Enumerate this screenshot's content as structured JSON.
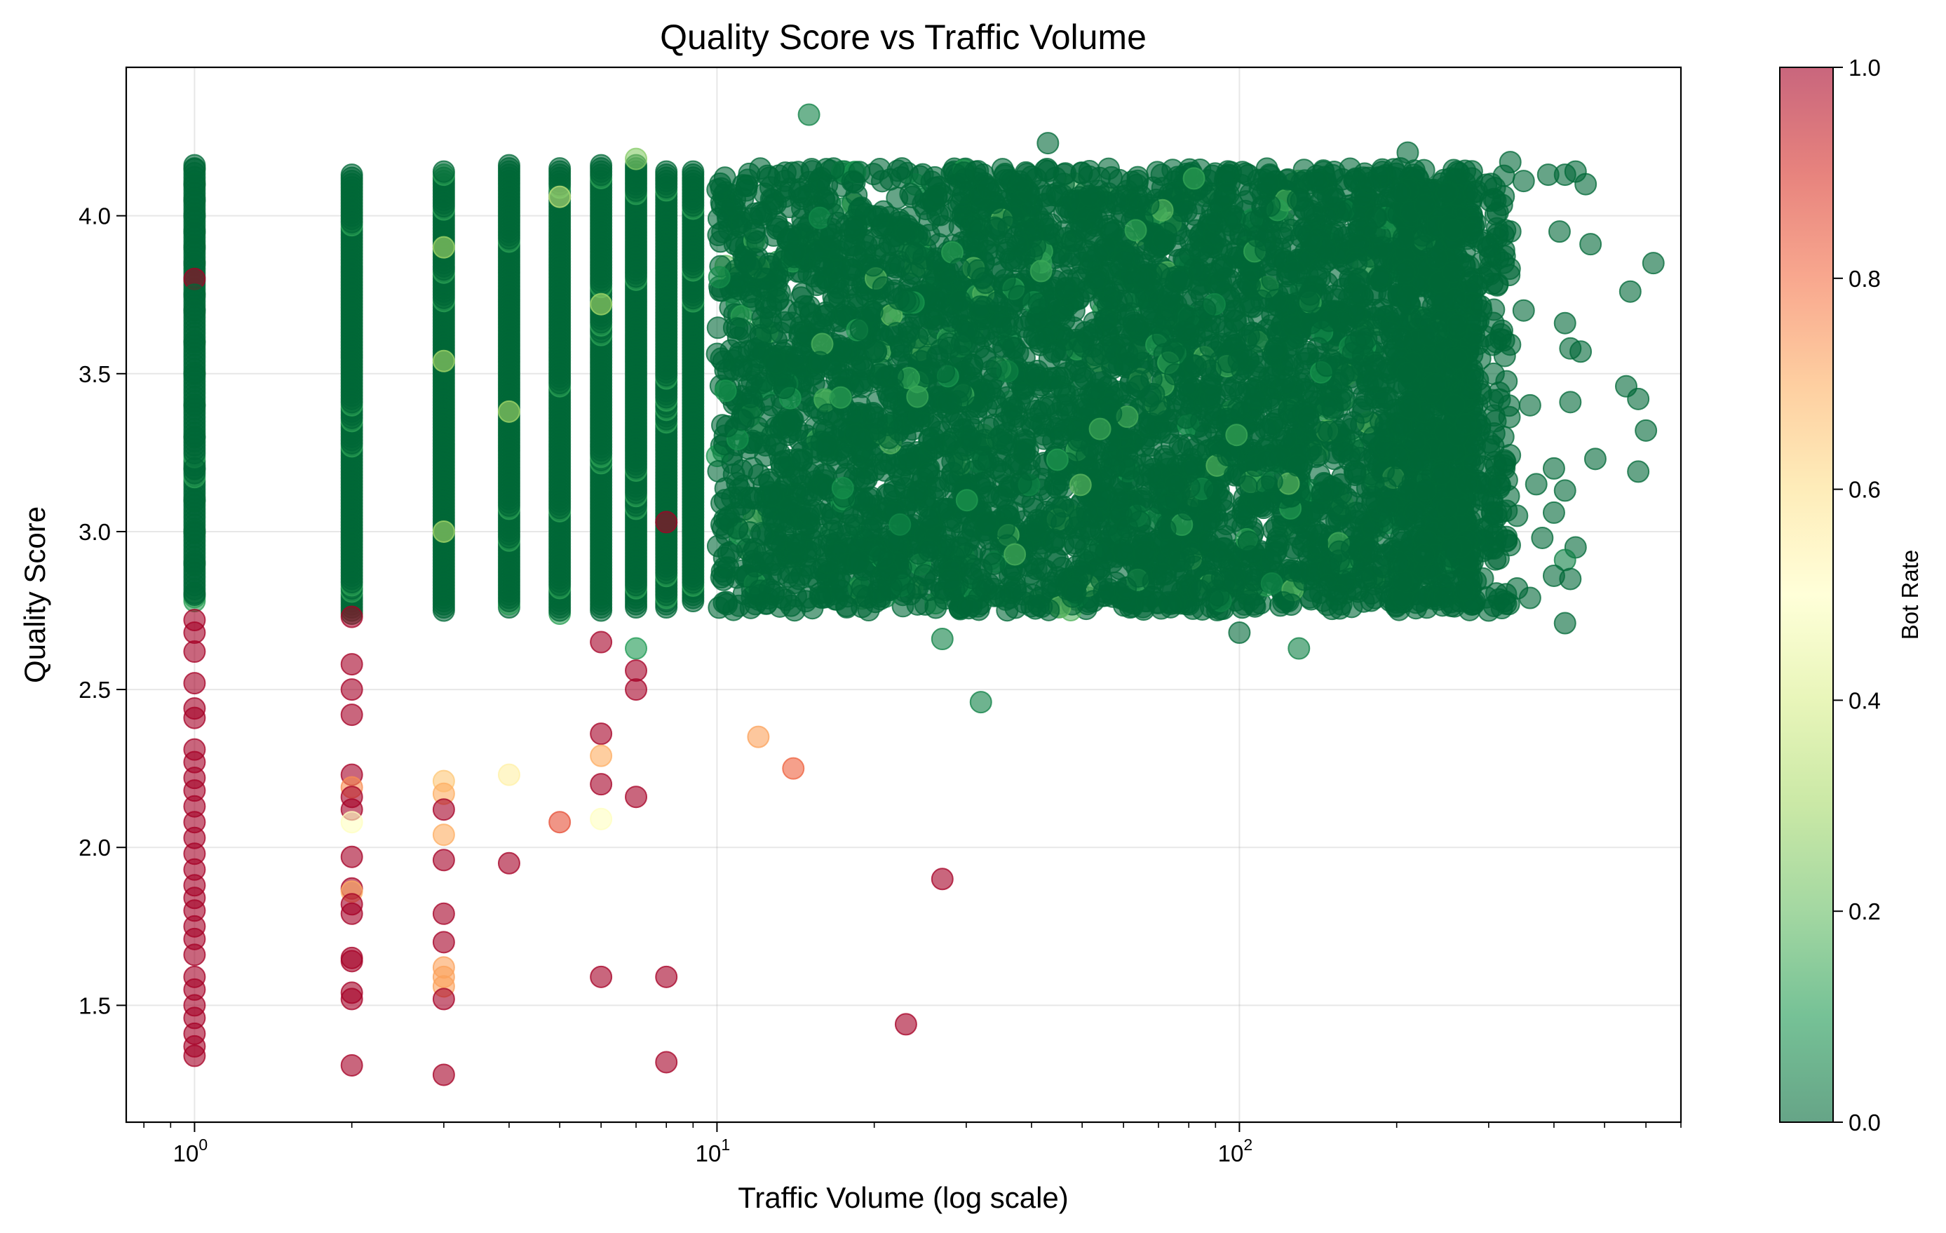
{
  "chart_data": {
    "type": "scatter",
    "title": "Quality Score vs Traffic Volume",
    "xlabel": "Traffic Volume (log scale)",
    "ylabel": "Quality Score",
    "x_scale": "log",
    "xlim": [
      0.74,
      700
    ],
    "ylim": [
      1.13,
      4.47
    ],
    "x_ticks": [
      {
        "value": 1,
        "base": "10",
        "exp": "0"
      },
      {
        "value": 10,
        "base": "10",
        "exp": "1"
      },
      {
        "value": 100,
        "base": "10",
        "exp": "2"
      }
    ],
    "y_ticks": [
      1.5,
      2.0,
      2.5,
      3.0,
      3.5,
      4.0
    ],
    "y_tick_labels": [
      "1.5",
      "2.0",
      "2.5",
      "3.0",
      "3.5",
      "4.0"
    ],
    "grid": true,
    "marker_alpha": 0.6,
    "colorbar": {
      "label": "Bot Rate",
      "range": [
        0.0,
        1.0
      ],
      "ticks": [
        0.0,
        0.2,
        0.4,
        0.6,
        0.8,
        1.0
      ],
      "tick_labels": [
        "0.0",
        "0.2",
        "0.4",
        "0.6",
        "0.8",
        "1.0"
      ],
      "colormap": [
        "#006837",
        "#1a9850",
        "#66bd63",
        "#a6d96a",
        "#d9ef8b",
        "#ffffbf",
        "#fee08b",
        "#fdae61",
        "#f46d43",
        "#d73027",
        "#a50026"
      ]
    },
    "bulk_regions": [
      {
        "x_range": [
          10,
          280
        ],
        "y_range": [
          2.75,
          4.15
        ],
        "bot_rate": 0.0,
        "description_density": "dense"
      }
    ],
    "points": [
      {
        "x": 1,
        "y": 4.15,
        "c": 0.0
      },
      {
        "x": 1,
        "y": 4.1,
        "c": 0.0
      },
      {
        "x": 1,
        "y": 4.05,
        "c": 0.0
      },
      {
        "x": 1,
        "y": 4.0,
        "c": 0.0
      },
      {
        "x": 1,
        "y": 3.95,
        "c": 0.0
      },
      {
        "x": 1,
        "y": 3.9,
        "c": 0.0
      },
      {
        "x": 1,
        "y": 3.85,
        "c": 0.0
      },
      {
        "x": 1,
        "y": 3.8,
        "c": 1.0
      },
      {
        "x": 1,
        "y": 3.75,
        "c": 0.0
      },
      {
        "x": 1,
        "y": 3.7,
        "c": 0.0
      },
      {
        "x": 1,
        "y": 3.6,
        "c": 0.0
      },
      {
        "x": 1,
        "y": 3.5,
        "c": 0.0
      },
      {
        "x": 1,
        "y": 3.4,
        "c": 0.0
      },
      {
        "x": 1,
        "y": 3.3,
        "c": 0.0
      },
      {
        "x": 1,
        "y": 3.2,
        "c": 0.0
      },
      {
        "x": 1,
        "y": 3.1,
        "c": 0.0
      },
      {
        "x": 1,
        "y": 3.0,
        "c": 0.0
      },
      {
        "x": 1,
        "y": 2.9,
        "c": 0.0
      },
      {
        "x": 1,
        "y": 2.8,
        "c": 0.0
      },
      {
        "x": 1,
        "y": 2.72,
        "c": 1.0
      },
      {
        "x": 1,
        "y": 2.68,
        "c": 1.0
      },
      {
        "x": 1,
        "y": 2.62,
        "c": 1.0
      },
      {
        "x": 1,
        "y": 2.52,
        "c": 1.0
      },
      {
        "x": 1,
        "y": 2.44,
        "c": 1.0
      },
      {
        "x": 1,
        "y": 2.41,
        "c": 1.0
      },
      {
        "x": 1,
        "y": 2.31,
        "c": 1.0
      },
      {
        "x": 1,
        "y": 2.27,
        "c": 1.0
      },
      {
        "x": 1,
        "y": 2.22,
        "c": 1.0
      },
      {
        "x": 1,
        "y": 2.18,
        "c": 1.0
      },
      {
        "x": 1,
        "y": 2.13,
        "c": 1.0
      },
      {
        "x": 1,
        "y": 2.08,
        "c": 1.0
      },
      {
        "x": 1,
        "y": 2.03,
        "c": 1.0
      },
      {
        "x": 1,
        "y": 1.98,
        "c": 1.0
      },
      {
        "x": 1,
        "y": 1.93,
        "c": 1.0
      },
      {
        "x": 1,
        "y": 1.88,
        "c": 1.0
      },
      {
        "x": 1,
        "y": 1.84,
        "c": 1.0
      },
      {
        "x": 1,
        "y": 1.8,
        "c": 1.0
      },
      {
        "x": 1,
        "y": 1.75,
        "c": 1.0
      },
      {
        "x": 1,
        "y": 1.71,
        "c": 1.0
      },
      {
        "x": 1,
        "y": 1.66,
        "c": 1.0
      },
      {
        "x": 1,
        "y": 1.59,
        "c": 1.0
      },
      {
        "x": 1,
        "y": 1.55,
        "c": 1.0
      },
      {
        "x": 1,
        "y": 1.5,
        "c": 1.0
      },
      {
        "x": 1,
        "y": 1.46,
        "c": 1.0
      },
      {
        "x": 1,
        "y": 1.41,
        "c": 1.0
      },
      {
        "x": 1,
        "y": 1.37,
        "c": 1.0
      },
      {
        "x": 1,
        "y": 1.34,
        "c": 1.0
      },
      {
        "x": 2,
        "y": 2.73,
        "c": 1.0
      },
      {
        "x": 2,
        "y": 2.58,
        "c": 1.0
      },
      {
        "x": 2,
        "y": 2.5,
        "c": 1.0
      },
      {
        "x": 2,
        "y": 2.42,
        "c": 1.0
      },
      {
        "x": 2,
        "y": 2.23,
        "c": 1.0
      },
      {
        "x": 2,
        "y": 2.19,
        "c": 0.75
      },
      {
        "x": 2,
        "y": 2.16,
        "c": 1.0
      },
      {
        "x": 2,
        "y": 2.12,
        "c": 1.0
      },
      {
        "x": 2,
        "y": 2.08,
        "c": 0.5
      },
      {
        "x": 2,
        "y": 1.97,
        "c": 1.0
      },
      {
        "x": 2,
        "y": 1.87,
        "c": 1.0
      },
      {
        "x": 2,
        "y": 1.86,
        "c": 0.7
      },
      {
        "x": 2,
        "y": 1.82,
        "c": 1.0
      },
      {
        "x": 2,
        "y": 1.79,
        "c": 1.0
      },
      {
        "x": 2,
        "y": 1.65,
        "c": 1.0
      },
      {
        "x": 2,
        "y": 1.64,
        "c": 1.0
      },
      {
        "x": 2,
        "y": 1.54,
        "c": 1.0
      },
      {
        "x": 2,
        "y": 1.52,
        "c": 1.0
      },
      {
        "x": 2,
        "y": 1.31,
        "c": 1.0
      },
      {
        "x": 3,
        "y": 2.21,
        "c": 0.65
      },
      {
        "x": 3,
        "y": 2.17,
        "c": 0.7
      },
      {
        "x": 3,
        "y": 2.12,
        "c": 1.0
      },
      {
        "x": 3,
        "y": 2.04,
        "c": 0.7
      },
      {
        "x": 3,
        "y": 1.96,
        "c": 1.0
      },
      {
        "x": 3,
        "y": 1.79,
        "c": 1.0
      },
      {
        "x": 3,
        "y": 1.7,
        "c": 1.0
      },
      {
        "x": 3,
        "y": 1.62,
        "c": 0.72
      },
      {
        "x": 3,
        "y": 1.59,
        "c": 0.72
      },
      {
        "x": 3,
        "y": 1.56,
        "c": 0.72
      },
      {
        "x": 3,
        "y": 1.52,
        "c": 1.0
      },
      {
        "x": 3,
        "y": 1.28,
        "c": 1.0
      },
      {
        "x": 3,
        "y": 3.9,
        "c": 0.3
      },
      {
        "x": 3,
        "y": 3.54,
        "c": 0.3
      },
      {
        "x": 3,
        "y": 3.0,
        "c": 0.3
      },
      {
        "x": 4,
        "y": 2.23,
        "c": 0.55
      },
      {
        "x": 4,
        "y": 1.95,
        "c": 1.0
      },
      {
        "x": 4,
        "y": 3.38,
        "c": 0.3
      },
      {
        "x": 5,
        "y": 2.08,
        "c": 0.85
      },
      {
        "x": 5,
        "y": 4.06,
        "c": 0.35
      },
      {
        "x": 6,
        "y": 2.65,
        "c": 1.0
      },
      {
        "x": 6,
        "y": 2.36,
        "c": 1.0
      },
      {
        "x": 6,
        "y": 2.29,
        "c": 0.7
      },
      {
        "x": 6,
        "y": 2.2,
        "c": 1.0
      },
      {
        "x": 6,
        "y": 2.09,
        "c": 0.5
      },
      {
        "x": 6,
        "y": 1.59,
        "c": 1.0
      },
      {
        "x": 6,
        "y": 3.72,
        "c": 0.3
      },
      {
        "x": 7,
        "y": 2.63,
        "c": 0.1
      },
      {
        "x": 7,
        "y": 2.56,
        "c": 1.0
      },
      {
        "x": 7,
        "y": 2.5,
        "c": 1.0
      },
      {
        "x": 7,
        "y": 2.16,
        "c": 1.0
      },
      {
        "x": 7,
        "y": 4.18,
        "c": 0.25
      },
      {
        "x": 8,
        "y": 3.03,
        "c": 1.0
      },
      {
        "x": 8,
        "y": 1.59,
        "c": 1.0
      },
      {
        "x": 8,
        "y": 1.32,
        "c": 1.0
      },
      {
        "x": 12,
        "y": 2.35,
        "c": 0.72
      },
      {
        "x": 14,
        "y": 2.25,
        "c": 0.82
      },
      {
        "x": 15,
        "y": 4.32,
        "c": 0.05
      },
      {
        "x": 23,
        "y": 1.44,
        "c": 1.0
      },
      {
        "x": 27,
        "y": 1.9,
        "c": 1.0
      },
      {
        "x": 27,
        "y": 2.66,
        "c": 0.05
      },
      {
        "x": 32,
        "y": 2.46,
        "c": 0.05
      },
      {
        "x": 43,
        "y": 4.23,
        "c": 0.0
      },
      {
        "x": 100,
        "y": 2.68,
        "c": 0.0
      },
      {
        "x": 130,
        "y": 2.63,
        "c": 0.05
      },
      {
        "x": 210,
        "y": 4.2,
        "c": 0.0
      },
      {
        "x": 330,
        "y": 4.17,
        "c": 0.0
      },
      {
        "x": 350,
        "y": 4.11,
        "c": 0.0
      },
      {
        "x": 390,
        "y": 4.13,
        "c": 0.0
      },
      {
        "x": 420,
        "y": 4.13,
        "c": 0.0
      },
      {
        "x": 440,
        "y": 4.14,
        "c": 0.0
      },
      {
        "x": 460,
        "y": 4.1,
        "c": 0.0
      },
      {
        "x": 470,
        "y": 3.91,
        "c": 0.0
      },
      {
        "x": 410,
        "y": 3.95,
        "c": 0.0
      },
      {
        "x": 560,
        "y": 3.76,
        "c": 0.0
      },
      {
        "x": 620,
        "y": 3.85,
        "c": 0.0
      },
      {
        "x": 420,
        "y": 3.66,
        "c": 0.0
      },
      {
        "x": 430,
        "y": 3.58,
        "c": 0.0
      },
      {
        "x": 450,
        "y": 3.57,
        "c": 0.0
      },
      {
        "x": 550,
        "y": 3.46,
        "c": 0.0
      },
      {
        "x": 580,
        "y": 3.42,
        "c": 0.0
      },
      {
        "x": 430,
        "y": 3.41,
        "c": 0.0
      },
      {
        "x": 600,
        "y": 3.32,
        "c": 0.0
      },
      {
        "x": 480,
        "y": 3.23,
        "c": 0.0
      },
      {
        "x": 580,
        "y": 3.19,
        "c": 0.0
      },
      {
        "x": 400,
        "y": 3.2,
        "c": 0.0
      },
      {
        "x": 420,
        "y": 3.13,
        "c": 0.0
      },
      {
        "x": 400,
        "y": 3.06,
        "c": 0.0
      },
      {
        "x": 440,
        "y": 2.95,
        "c": 0.0
      },
      {
        "x": 380,
        "y": 2.98,
        "c": 0.0
      },
      {
        "x": 420,
        "y": 2.91,
        "c": 0.05
      },
      {
        "x": 430,
        "y": 2.85,
        "c": 0.0
      },
      {
        "x": 400,
        "y": 2.86,
        "c": 0.0
      },
      {
        "x": 360,
        "y": 2.79,
        "c": 0.0
      },
      {
        "x": 420,
        "y": 2.71,
        "c": 0.0
      },
      {
        "x": 300,
        "y": 2.75,
        "c": 0.0
      },
      {
        "x": 340,
        "y": 2.82,
        "c": 0.0
      },
      {
        "x": 310,
        "y": 3.6,
        "c": 0.0
      },
      {
        "x": 330,
        "y": 3.95,
        "c": 0.0
      },
      {
        "x": 350,
        "y": 3.7,
        "c": 0.0
      },
      {
        "x": 360,
        "y": 3.4,
        "c": 0.0
      },
      {
        "x": 370,
        "y": 3.15,
        "c": 0.0
      },
      {
        "x": 340,
        "y": 3.05,
        "c": 0.0
      },
      {
        "x": 320,
        "y": 3.3,
        "c": 0.0
      },
      {
        "x": 300,
        "y": 3.9,
        "c": 0.0
      }
    ]
  }
}
